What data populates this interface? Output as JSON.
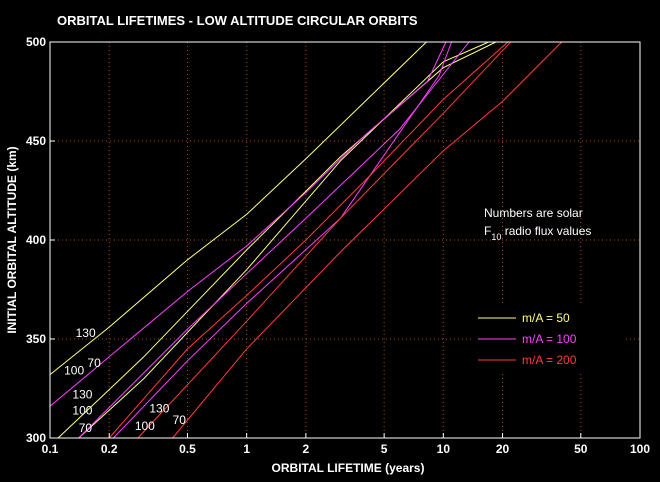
{
  "chart_data": {
    "type": "line",
    "title": "ORBITAL  LIFETIMES -  LOW ALTITUDE CIRCULAR ORBITS",
    "xlabel": "ORBITAL LIFETIME (years)",
    "ylabel": "INITIAL ORBITAL ALTITUDE  (km)",
    "x_scale": "log",
    "xlim": [
      0.1,
      100
    ],
    "ylim": [
      300,
      500
    ],
    "x_ticks": [
      "0.1",
      "0.2",
      "0.5",
      "1",
      "2",
      "5",
      "10",
      "20",
      "50",
      "100"
    ],
    "y_ticks": [
      "300",
      "350",
      "400",
      "450",
      "500"
    ],
    "grid": true,
    "note_line1": "Numbers are solar",
    "note_F": "F",
    "note_sub": "10",
    "note_rest": "  radio flux values",
    "legend": [
      {
        "label": "m/A = 50",
        "color": "#ffff80"
      },
      {
        "label": "m/A = 100",
        "color": "#ff40ff"
      },
      {
        "label": "m/A = 200",
        "color": "#ff3b3b"
      }
    ],
    "series": [
      {
        "group": "m/A = 50",
        "flux": "130",
        "color": "#ffff80",
        "x": [
          0.14,
          0.3,
          1,
          3,
          10,
          17
        ],
        "y": [
          300,
          330,
          385,
          440,
          490,
          500
        ]
      },
      {
        "group": "m/A = 50",
        "flux": "100",
        "color": "#ffff80",
        "x": [
          0.11,
          0.3,
          1,
          3,
          10,
          18.5
        ],
        "y": [
          300,
          341,
          395,
          442,
          487,
          500
        ]
      },
      {
        "group": "m/A = 50",
        "flux": "70",
        "color": "#ffff80",
        "x": [
          0.1,
          0.2,
          0.5,
          1,
          2,
          4,
          8.2
        ],
        "y": [
          332,
          356,
          390,
          413,
          441,
          470,
          500
        ]
      },
      {
        "group": "m/A = 100",
        "flux": "130",
        "color": "#ff40ff",
        "x": [
          0.21,
          0.5,
          1,
          3,
          9.5,
          11
        ],
        "y": [
          300,
          339,
          368,
          411,
          483,
          500
        ]
      },
      {
        "group": "m/A = 100",
        "flux": "100",
        "color": "#ff40ff",
        "x": [
          0.14,
          0.5,
          2,
          6,
          13.5
        ],
        "y": [
          300,
          355,
          411,
          456,
          500
        ]
      },
      {
        "group": "m/A = 100",
        "flux": "70",
        "color": "#ff40ff",
        "x": [
          0.1,
          0.2,
          0.5,
          1,
          2,
          4,
          8.3,
          10.3
        ],
        "y": [
          316,
          341,
          374,
          397,
          424,
          453,
          480,
          500
        ]
      },
      {
        "group": "m/A = 200",
        "flux": "130",
        "color": "#ff3b3b",
        "x": [
          0.42,
          1,
          3,
          10,
          20,
          40
        ],
        "y": [
          300,
          345,
          394,
          445,
          470,
          500
        ]
      },
      {
        "group": "m/A = 200",
        "flux": "100",
        "color": "#ff3b3b",
        "x": [
          0.28,
          1,
          3,
          10,
          22
        ],
        "y": [
          300,
          359,
          411,
          464,
          500
        ]
      },
      {
        "group": "m/A = 200",
        "flux": "70",
        "color": "#ff3b3b",
        "x": [
          0.2,
          0.5,
          1,
          2,
          4,
          10,
          21.3
        ],
        "y": [
          300,
          345,
          372,
          400,
          430,
          471,
          500
        ]
      }
    ],
    "flux_labels": [
      {
        "text": "130",
        "x": 0.135,
        "y": 353
      },
      {
        "text": "100",
        "x": 0.118,
        "y": 334
      },
      {
        "text": "70",
        "x": 0.155,
        "y": 338
      },
      {
        "text": "130",
        "x": 0.13,
        "y": 322
      },
      {
        "text": "100",
        "x": 0.13,
        "y": 314
      },
      {
        "text": "70",
        "x": 0.14,
        "y": 305
      },
      {
        "text": "130",
        "x": 0.32,
        "y": 315
      },
      {
        "text": "100",
        "x": 0.27,
        "y": 306
      },
      {
        "text": "70",
        "x": 0.42,
        "y": 309
      }
    ]
  }
}
